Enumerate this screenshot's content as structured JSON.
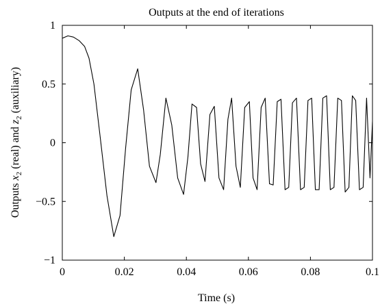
{
  "chart_data": {
    "type": "line",
    "title": "Outputs at the end of iterations",
    "xlabel": "Time (s)",
    "ylabel": {
      "prefix": "Outputs ",
      "var1": "x",
      "sub1": "2",
      "mid": " (real) and ",
      "var2": "z",
      "sub2": "2",
      "suffix": " (auxiliary)"
    },
    "xlim": [
      0,
      0.1
    ],
    "ylim": [
      -1,
      1
    ],
    "x_ticks": [
      0,
      0.02,
      0.04,
      0.06,
      0.08,
      0.1
    ],
    "x_tick_labels": [
      "0",
      "0.02",
      "0.04",
      "0.06",
      "0.08",
      "0.1"
    ],
    "y_ticks": [
      -1,
      -0.5,
      0,
      0.5,
      1
    ],
    "y_tick_labels": [
      "−1",
      "−0.5",
      "0",
      "0.5",
      "1"
    ],
    "grid": false,
    "line_color": "#000000",
    "series": [
      {
        "x": [
          0,
          0.0018,
          0.0036,
          0.0054,
          0.0072,
          0.0086,
          0.0102,
          0.0122,
          0.0144,
          0.0166,
          0.0186,
          0.0204,
          0.0222,
          0.0243,
          0.0262,
          0.0281,
          0.0302,
          0.0316,
          0.0334,
          0.0353,
          0.0372,
          0.0391,
          0.0405,
          0.0418,
          0.0433,
          0.0446,
          0.046,
          0.0476,
          0.049,
          0.0505,
          0.052,
          0.0534,
          0.0546,
          0.056,
          0.0574,
          0.0588,
          0.0603,
          0.0615,
          0.0628,
          0.0641,
          0.0654,
          0.0668,
          0.068,
          0.0693,
          0.0705,
          0.0718,
          0.073,
          0.0742,
          0.0755,
          0.0768,
          0.078,
          0.0792,
          0.0804,
          0.0816,
          0.0828,
          0.084,
          0.0852,
          0.0864,
          0.0876,
          0.0888,
          0.09,
          0.0912,
          0.0924,
          0.0935,
          0.0946,
          0.0958,
          0.097,
          0.0981,
          0.0992,
          0.1
        ],
        "y": [
          0.89,
          0.91,
          0.9,
          0.87,
          0.82,
          0.72,
          0.5,
          0.05,
          -0.45,
          -0.8,
          -0.62,
          -0.05,
          0.45,
          0.63,
          0.28,
          -0.2,
          -0.34,
          -0.1,
          0.38,
          0.15,
          -0.3,
          -0.44,
          -0.12,
          0.33,
          0.3,
          -0.18,
          -0.33,
          0.24,
          0.31,
          -0.3,
          -0.4,
          0.2,
          0.38,
          -0.2,
          -0.38,
          0.3,
          0.35,
          -0.3,
          -0.4,
          0.3,
          0.38,
          -0.35,
          -0.36,
          0.35,
          0.37,
          -0.4,
          -0.38,
          0.34,
          0.38,
          -0.4,
          -0.38,
          0.36,
          0.38,
          -0.4,
          -0.4,
          0.38,
          0.4,
          -0.4,
          -0.38,
          0.38,
          0.36,
          -0.42,
          -0.38,
          0.4,
          0.36,
          -0.4,
          -0.38,
          0.38,
          -0.3,
          0.18
        ]
      }
    ]
  }
}
